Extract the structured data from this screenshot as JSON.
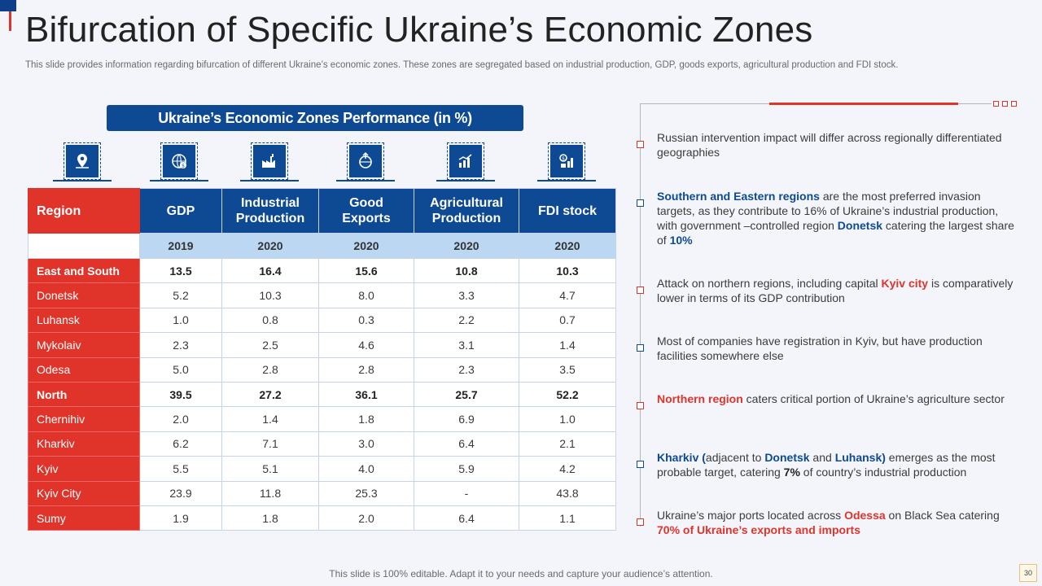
{
  "title": "Bifurcation of Specific Ukraine’s Economic Zones",
  "subtitle": "This slide provides information regarding bifurcation of different Ukraine’s economic zones. These zones are segregated based on industrial production, GDP, goods exports, agricultural production and FDI stock.",
  "banner": "Ukraine’s Economic Zones Performance (in %)",
  "icons": [
    "map-pin-icon",
    "globe-dollar-icon",
    "factory-icon",
    "export-globe-icon",
    "agriculture-chart-icon",
    "investment-icon"
  ],
  "table": {
    "headers": [
      "Region",
      "GDP",
      "Industrial Production",
      "Good Exports",
      "Agricultural Production",
      "FDI stock"
    ],
    "header_lines": [
      [
        "Region"
      ],
      [
        "GDP"
      ],
      [
        "Industrial",
        "Production"
      ],
      [
        "Good",
        "Exports"
      ],
      [
        "Agricultural",
        "Production"
      ],
      [
        "FDI stock"
      ]
    ],
    "years": [
      "",
      "2019",
      "2020",
      "2020",
      "2020",
      "2020"
    ],
    "rows": [
      {
        "name": "East and South",
        "values": [
          "13.5",
          "16.4",
          "15.6",
          "10.8",
          "10.3"
        ],
        "summary": true
      },
      {
        "name": "Donetsk",
        "values": [
          "5.2",
          "10.3",
          "8.0",
          "3.3",
          "4.7"
        ]
      },
      {
        "name": "Luhansk",
        "values": [
          "1.0",
          "0.8",
          "0.3",
          "2.2",
          "0.7"
        ]
      },
      {
        "name": "Mykolaiv",
        "values": [
          "2.3",
          "2.5",
          "4.6",
          "3.1",
          "1.4"
        ]
      },
      {
        "name": "Odesa",
        "values": [
          "5.0",
          "2.8",
          "2.8",
          "2.3",
          "3.5"
        ]
      },
      {
        "name": "North",
        "values": [
          "39.5",
          "27.2",
          "36.1",
          "25.7",
          "52.2"
        ],
        "summary": true
      },
      {
        "name": "Chernihiv",
        "values": [
          "2.0",
          "1.4",
          "1.8",
          "6.9",
          "1.0"
        ]
      },
      {
        "name": "Kharkiv",
        "values": [
          "6.2",
          "7.1",
          "3.0",
          "6.4",
          "2.1"
        ]
      },
      {
        "name": "Kyiv",
        "values": [
          "5.5",
          "5.1",
          "4.0",
          "5.9",
          "4.2"
        ]
      },
      {
        "name": "Kyiv City",
        "values": [
          "23.9",
          "11.8",
          "25.3",
          "-",
          "43.8"
        ]
      },
      {
        "name": "Sumy",
        "values": [
          "1.9",
          "1.8",
          "2.0",
          "6.4",
          "1.1"
        ]
      }
    ]
  },
  "notes": [
    {
      "color": "red",
      "parts": [
        {
          "t": "Russian intervention impact will differ across regionally differentiated geographies"
        }
      ]
    },
    {
      "color": "blue",
      "parts": [
        {
          "t": "Southern and Eastern regions",
          "s": "b"
        },
        {
          "t": " are the most preferred invasion targets, as they contribute to 16% of Ukraine’s industrial production, with government –controlled region "
        },
        {
          "t": "Donetsk",
          "s": "b"
        },
        {
          "t": " catering the largest share of "
        },
        {
          "t": "10%",
          "s": "b"
        }
      ]
    },
    {
      "color": "red",
      "parts": [
        {
          "t": "Attack on northern regions, including capital "
        },
        {
          "t": "Kyiv city",
          "s": "r"
        },
        {
          "t": " is comparatively lower in terms of its GDP contribution"
        }
      ]
    },
    {
      "color": "blue",
      "parts": [
        {
          "t": "Most of companies have registration in Kyiv, but have production facilities somewhere else"
        }
      ]
    },
    {
      "color": "red",
      "parts": [
        {
          "t": "Northern region",
          "s": "r"
        },
        {
          "t": " caters critical portion of Ukraine’s agriculture sector"
        }
      ]
    },
    {
      "color": "blue",
      "parts": [
        {
          "t": "Kharkiv (",
          "s": "b"
        },
        {
          "t": "adjacent to "
        },
        {
          "t": "Donetsk",
          "s": "b"
        },
        {
          "t": " and "
        },
        {
          "t": "Luhansk)",
          "s": "b"
        },
        {
          "t": " emerges as the most probable target, catering "
        },
        {
          "t": "7%",
          "s": "k"
        },
        {
          "t": " of country’s industrial production"
        }
      ]
    },
    {
      "color": "red",
      "parts": [
        {
          "t": "Ukraine’s major ports located across "
        },
        {
          "t": "Odessa",
          "s": "r"
        },
        {
          "t": " on Black Sea catering "
        },
        {
          "t": "70% of Ukraine’s exports and imports",
          "s": "r"
        }
      ]
    }
  ],
  "footer": "This slide is 100% editable. Adapt it to your needs and capture your audience’s attention.",
  "page_number": "30"
}
